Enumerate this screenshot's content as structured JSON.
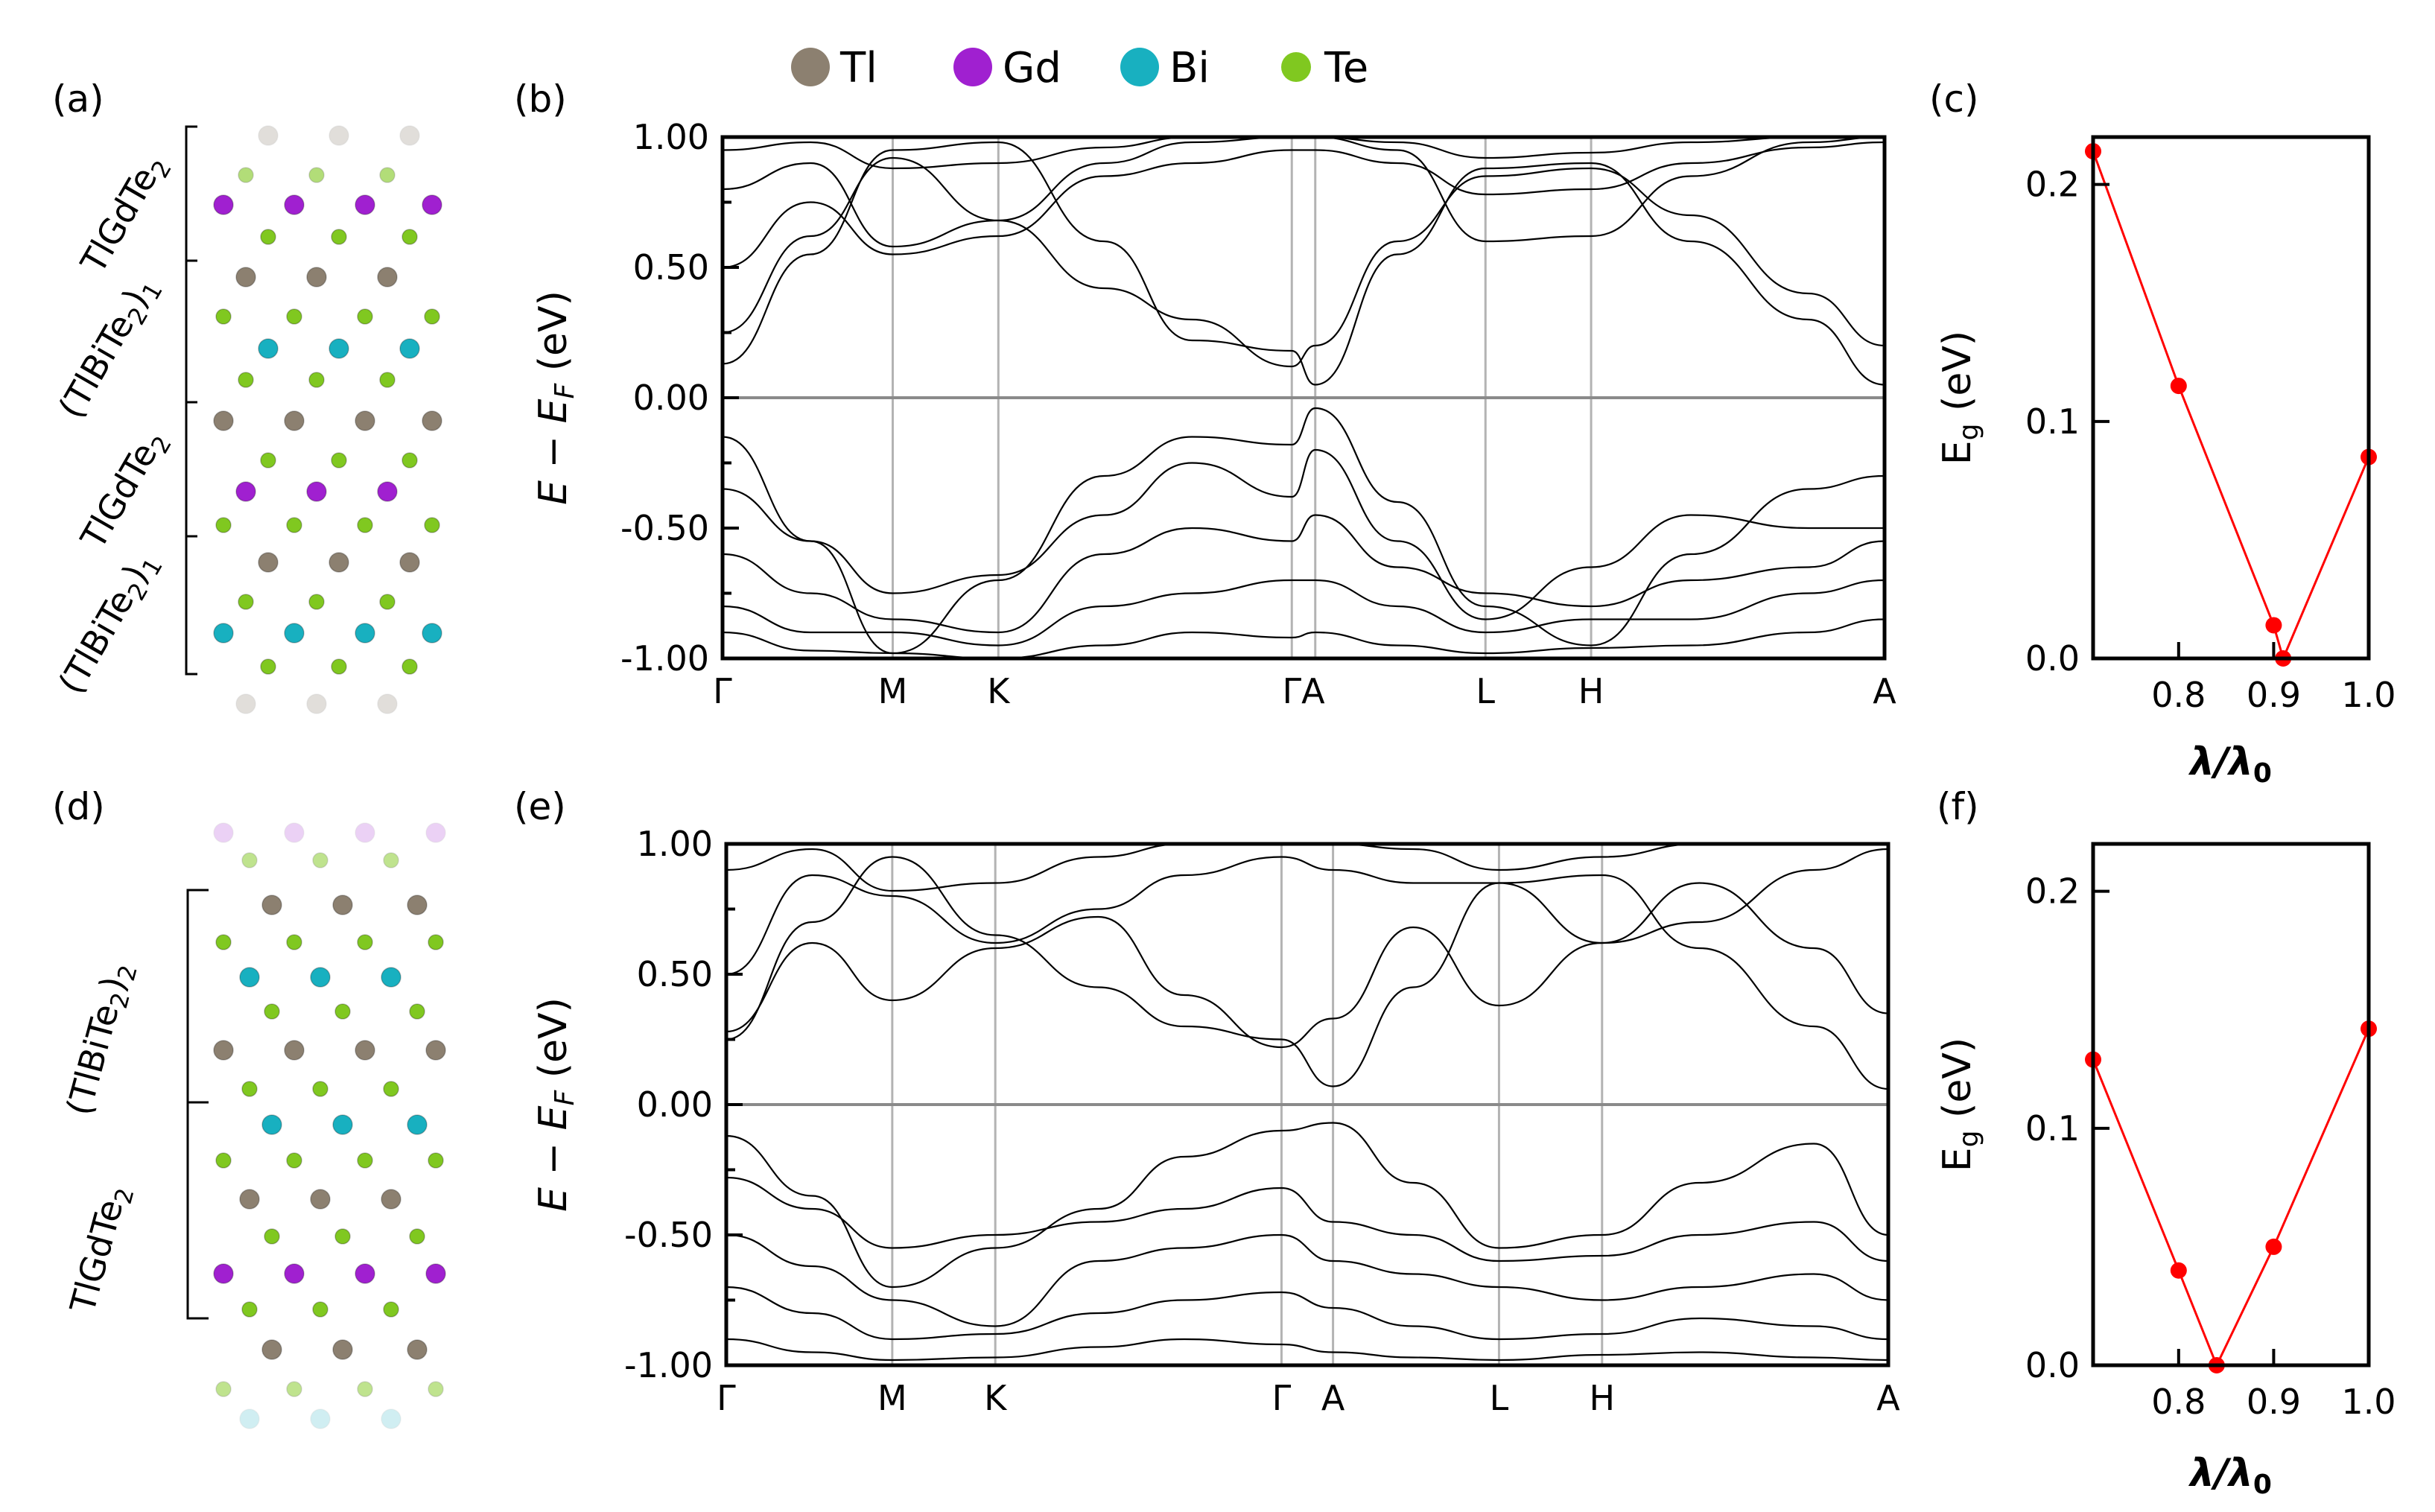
{
  "legend": [
    {
      "label": "Tl",
      "color": "#8c8070"
    },
    {
      "label": "Gd",
      "color": "#a020d0"
    },
    {
      "label": "Bi",
      "color": "#18b0c0"
    },
    {
      "label": "Te",
      "color": "#80c820"
    }
  ],
  "top_row": {
    "label_a": "(a)",
    "label_b": "(b)",
    "label_c": "(c)",
    "structure": {
      "layer1_base": "TlGdTe",
      "layer1_sub": "2",
      "layer2_base": "(TlBiTe",
      "layer2_sub": "2",
      "layer2_tail": ")",
      "layer2_sub2": "1",
      "layer3_base": "TlGdTe",
      "layer3_sub": "2",
      "layer4_base": "(TlBiTe",
      "layer4_sub": "2",
      "layer4_tail": ")",
      "layer4_sub2": "1"
    }
  },
  "bottom_row": {
    "label_d": "(d)",
    "label_e": "(e)",
    "label_f": "(f)",
    "structure": {
      "layer1_base": "(TlBiTe",
      "layer1_sub": "2",
      "layer1_tail": ")",
      "layer1_sub2": "2",
      "layer2_base": "TlGdTe",
      "layer2_sub": "2"
    }
  },
  "band_axis": {
    "ylabel_pre": "E − E",
    "ylabel_sub": "F",
    "ylabel_post": " (eV)",
    "yticks": [
      "1.00",
      "0.50",
      "0.00",
      "-0.50",
      "-1.00"
    ]
  },
  "gap_axis": {
    "ylabel_base": "E",
    "ylabel_sub": "g",
    "ylabel_post": " (eV)",
    "xlabel_base": "λ/λ",
    "xlabel_sub": "0",
    "yticks": [
      "0.2",
      "0.1",
      "0.0"
    ],
    "xticks": [
      "0.8",
      "0.9",
      "1.0"
    ]
  },
  "chart_data": [
    {
      "id": "b",
      "type": "line",
      "title": "",
      "ylabel": "E − E_F (eV)",
      "ylim": [
        -1.0,
        1.0
      ],
      "kpath": [
        "Γ",
        "M",
        "K",
        "Γ",
        "A",
        "L",
        "H",
        "A"
      ],
      "kpath_labels": [
        "Γ",
        "M",
        "K",
        "ΓA",
        "L",
        "H",
        "A"
      ],
      "kpath_positions": [
        0,
        0.58,
        0.94,
        1.94,
        2.02,
        2.6,
        2.96,
        3.96
      ],
      "series": [
        {
          "name": "cb1",
          "x": [
            0,
            0.3,
            0.58,
            0.94,
            1.3,
            1.6,
            1.94,
            2.02,
            2.3,
            2.6,
            2.96,
            3.3,
            3.7,
            3.96
          ],
          "y": [
            0.13,
            0.55,
            0.95,
            0.98,
            0.6,
            0.22,
            0.18,
            0.05,
            0.55,
            0.88,
            0.9,
            0.6,
            0.3,
            0.05
          ]
        },
        {
          "name": "cb2",
          "x": [
            0,
            0.3,
            0.58,
            0.94,
            1.3,
            1.6,
            1.94,
            2.02,
            2.3,
            2.6,
            2.96,
            3.3,
            3.7,
            3.96
          ],
          "y": [
            0.25,
            0.62,
            0.92,
            0.68,
            0.42,
            0.3,
            0.12,
            0.2,
            0.6,
            0.85,
            0.88,
            0.7,
            0.4,
            0.2
          ]
        },
        {
          "name": "cb3",
          "x": [
            0,
            0.3,
            0.58,
            0.94,
            1.3,
            1.6,
            1.94,
            2.02,
            2.3,
            2.6,
            2.96,
            3.3,
            3.7,
            3.96
          ],
          "y": [
            0.5,
            0.75,
            0.55,
            0.62,
            0.85,
            0.9,
            0.95,
            0.95,
            0.9,
            0.78,
            0.8,
            0.9,
            0.96,
            0.98
          ]
        },
        {
          "name": "cb4",
          "x": [
            0,
            0.3,
            0.58,
            0.94,
            1.3,
            1.6,
            1.94,
            2.02,
            2.3,
            2.6,
            2.96,
            3.3,
            3.7,
            3.96
          ],
          "y": [
            0.8,
            0.9,
            0.58,
            0.68,
            0.9,
            0.98,
            1.0,
            1.0,
            0.95,
            0.6,
            0.62,
            0.85,
            0.98,
            1.0
          ]
        },
        {
          "name": "cb5",
          "x": [
            0,
            0.3,
            0.58,
            0.94,
            1.3,
            1.6,
            1.94,
            2.02,
            2.3,
            2.6,
            2.96,
            3.3,
            3.7,
            3.96
          ],
          "y": [
            0.95,
            0.98,
            0.88,
            0.9,
            0.96,
            1.0,
            1.0,
            1.0,
            0.98,
            0.92,
            0.94,
            0.98,
            1.0,
            1.0
          ]
        },
        {
          "name": "vb1",
          "x": [
            0,
            0.3,
            0.58,
            0.94,
            1.3,
            1.6,
            1.94,
            2.02,
            2.3,
            2.6,
            2.96,
            3.3,
            3.7,
            3.96
          ],
          "y": [
            -0.15,
            -0.55,
            -0.98,
            -0.7,
            -0.3,
            -0.15,
            -0.18,
            -0.04,
            -0.4,
            -0.8,
            -0.95,
            -0.6,
            -0.35,
            -0.3
          ]
        },
        {
          "name": "vb2",
          "x": [
            0,
            0.3,
            0.58,
            0.94,
            1.3,
            1.6,
            1.94,
            2.02,
            2.3,
            2.6,
            2.96,
            3.3,
            3.7,
            3.96
          ],
          "y": [
            -0.35,
            -0.55,
            -0.75,
            -0.68,
            -0.45,
            -0.25,
            -0.38,
            -0.2,
            -0.55,
            -0.85,
            -0.65,
            -0.45,
            -0.5,
            -0.5
          ]
        },
        {
          "name": "vb3",
          "x": [
            0,
            0.3,
            0.58,
            0.94,
            1.3,
            1.6,
            1.94,
            2.02,
            2.3,
            2.6,
            2.96,
            3.3,
            3.7,
            3.96
          ],
          "y": [
            -0.6,
            -0.75,
            -0.85,
            -0.9,
            -0.6,
            -0.5,
            -0.55,
            -0.45,
            -0.65,
            -0.75,
            -0.8,
            -0.7,
            -0.65,
            -0.55
          ]
        },
        {
          "name": "vb4",
          "x": [
            0,
            0.3,
            0.58,
            0.94,
            1.3,
            1.6,
            1.94,
            2.02,
            2.3,
            2.6,
            2.96,
            3.3,
            3.7,
            3.96
          ],
          "y": [
            -0.8,
            -0.9,
            -0.9,
            -0.95,
            -0.8,
            -0.75,
            -0.7,
            -0.7,
            -0.8,
            -0.9,
            -0.85,
            -0.85,
            -0.75,
            -0.7
          ]
        },
        {
          "name": "vb5",
          "x": [
            0,
            0.3,
            0.58,
            0.94,
            1.3,
            1.6,
            1.94,
            2.02,
            2.3,
            2.6,
            2.96,
            3.3,
            3.7,
            3.96
          ],
          "y": [
            -0.9,
            -0.97,
            -0.98,
            -1.0,
            -0.95,
            -0.9,
            -0.92,
            -0.9,
            -0.95,
            -0.98,
            -0.96,
            -0.95,
            -0.9,
            -0.85
          ]
        }
      ]
    },
    {
      "id": "c",
      "type": "line",
      "xlabel": "λ/λ0",
      "ylabel": "E_g (eV)",
      "xlim": [
        0.71,
        1.0
      ],
      "ylim": [
        0.0,
        0.22
      ],
      "color": "#ff0000",
      "x": [
        0.71,
        0.8,
        0.9,
        0.91,
        1.0
      ],
      "y": [
        0.214,
        0.115,
        0.014,
        0.0,
        0.085
      ]
    },
    {
      "id": "e",
      "type": "line",
      "title": "",
      "ylabel": "E − E_F (eV)",
      "ylim": [
        -1.0,
        1.0
      ],
      "kpath": [
        "Γ",
        "M",
        "K",
        "Γ",
        "A",
        "L",
        "H",
        "A"
      ],
      "kpath_labels": [
        "Γ",
        "M",
        "K",
        "Γ",
        "A",
        "L",
        "H",
        "A"
      ],
      "kpath_positions": [
        0,
        0.58,
        0.94,
        1.94,
        2.12,
        2.7,
        3.06,
        4.06
      ],
      "series": [
        {
          "name": "cb1",
          "x": [
            0,
            0.3,
            0.58,
            0.94,
            1.3,
            1.6,
            1.94,
            2.12,
            2.4,
            2.7,
            3.06,
            3.4,
            3.8,
            4.06
          ],
          "y": [
            0.25,
            0.7,
            0.95,
            0.65,
            0.45,
            0.3,
            0.25,
            0.07,
            0.45,
            0.85,
            0.88,
            0.6,
            0.3,
            0.06
          ]
        },
        {
          "name": "cb2",
          "x": [
            0,
            0.3,
            0.58,
            0.94,
            1.3,
            1.6,
            1.94,
            2.12,
            2.4,
            2.7,
            3.06,
            3.4,
            3.8,
            4.06
          ],
          "y": [
            0.28,
            0.62,
            0.4,
            0.6,
            0.72,
            0.42,
            0.22,
            0.33,
            0.68,
            0.38,
            0.62,
            0.85,
            0.6,
            0.35
          ]
        },
        {
          "name": "cb3",
          "x": [
            0,
            0.3,
            0.58,
            0.94,
            1.3,
            1.6,
            1.94,
            2.12,
            2.4,
            2.7,
            3.06,
            3.4,
            3.8,
            4.06
          ],
          "y": [
            0.5,
            0.88,
            0.8,
            0.62,
            0.75,
            0.88,
            0.95,
            0.9,
            0.85,
            0.85,
            0.62,
            0.7,
            0.9,
            0.98
          ]
        },
        {
          "name": "cb4",
          "x": [
            0,
            0.3,
            0.58,
            0.94,
            1.3,
            1.6,
            1.94,
            2.12,
            2.4,
            2.7,
            3.06,
            3.4,
            3.8,
            4.06
          ],
          "y": [
            0.9,
            0.98,
            0.82,
            0.85,
            0.95,
            1.0,
            1.0,
            1.0,
            0.98,
            0.9,
            0.95,
            1.0,
            1.0,
            1.0
          ]
        },
        {
          "name": "vb1",
          "x": [
            0,
            0.3,
            0.58,
            0.94,
            1.3,
            1.6,
            1.94,
            2.12,
            2.4,
            2.7,
            3.06,
            3.4,
            3.8,
            4.06
          ],
          "y": [
            -0.12,
            -0.35,
            -0.7,
            -0.55,
            -0.4,
            -0.2,
            -0.1,
            -0.07,
            -0.3,
            -0.55,
            -0.5,
            -0.3,
            -0.15,
            -0.5
          ]
        },
        {
          "name": "vb2",
          "x": [
            0,
            0.3,
            0.58,
            0.94,
            1.3,
            1.6,
            1.94,
            2.12,
            2.4,
            2.7,
            3.06,
            3.4,
            3.8,
            4.06
          ],
          "y": [
            -0.28,
            -0.4,
            -0.55,
            -0.5,
            -0.45,
            -0.4,
            -0.32,
            -0.45,
            -0.5,
            -0.6,
            -0.58,
            -0.5,
            -0.45,
            -0.6
          ]
        },
        {
          "name": "vb3",
          "x": [
            0,
            0.3,
            0.58,
            0.94,
            1.3,
            1.6,
            1.94,
            2.12,
            2.4,
            2.7,
            3.06,
            3.4,
            3.8,
            4.06
          ],
          "y": [
            -0.5,
            -0.62,
            -0.75,
            -0.85,
            -0.6,
            -0.55,
            -0.5,
            -0.6,
            -0.65,
            -0.7,
            -0.75,
            -0.7,
            -0.65,
            -0.75
          ]
        },
        {
          "name": "vb4",
          "x": [
            0,
            0.3,
            0.58,
            0.94,
            1.3,
            1.6,
            1.94,
            2.12,
            2.4,
            2.7,
            3.06,
            3.4,
            3.8,
            4.06
          ],
          "y": [
            -0.7,
            -0.8,
            -0.9,
            -0.88,
            -0.8,
            -0.75,
            -0.72,
            -0.78,
            -0.85,
            -0.9,
            -0.88,
            -0.82,
            -0.85,
            -0.9
          ]
        },
        {
          "name": "vb5",
          "x": [
            0,
            0.3,
            0.58,
            0.94,
            1.3,
            1.6,
            1.94,
            2.12,
            2.4,
            2.7,
            3.06,
            3.4,
            3.8,
            4.06
          ],
          "y": [
            -0.9,
            -0.95,
            -0.98,
            -0.97,
            -0.93,
            -0.9,
            -0.92,
            -0.95,
            -0.97,
            -0.98,
            -0.96,
            -0.95,
            -0.97,
            -0.98
          ]
        }
      ]
    },
    {
      "id": "f",
      "type": "line",
      "xlabel": "λ/λ0",
      "ylabel": "E_g (eV)",
      "xlim": [
        0.71,
        1.0
      ],
      "ylim": [
        0.0,
        0.22
      ],
      "color": "#ff0000",
      "x": [
        0.71,
        0.8,
        0.84,
        0.9,
        1.0
      ],
      "y": [
        0.129,
        0.04,
        0.0,
        0.05,
        0.142
      ]
    }
  ]
}
